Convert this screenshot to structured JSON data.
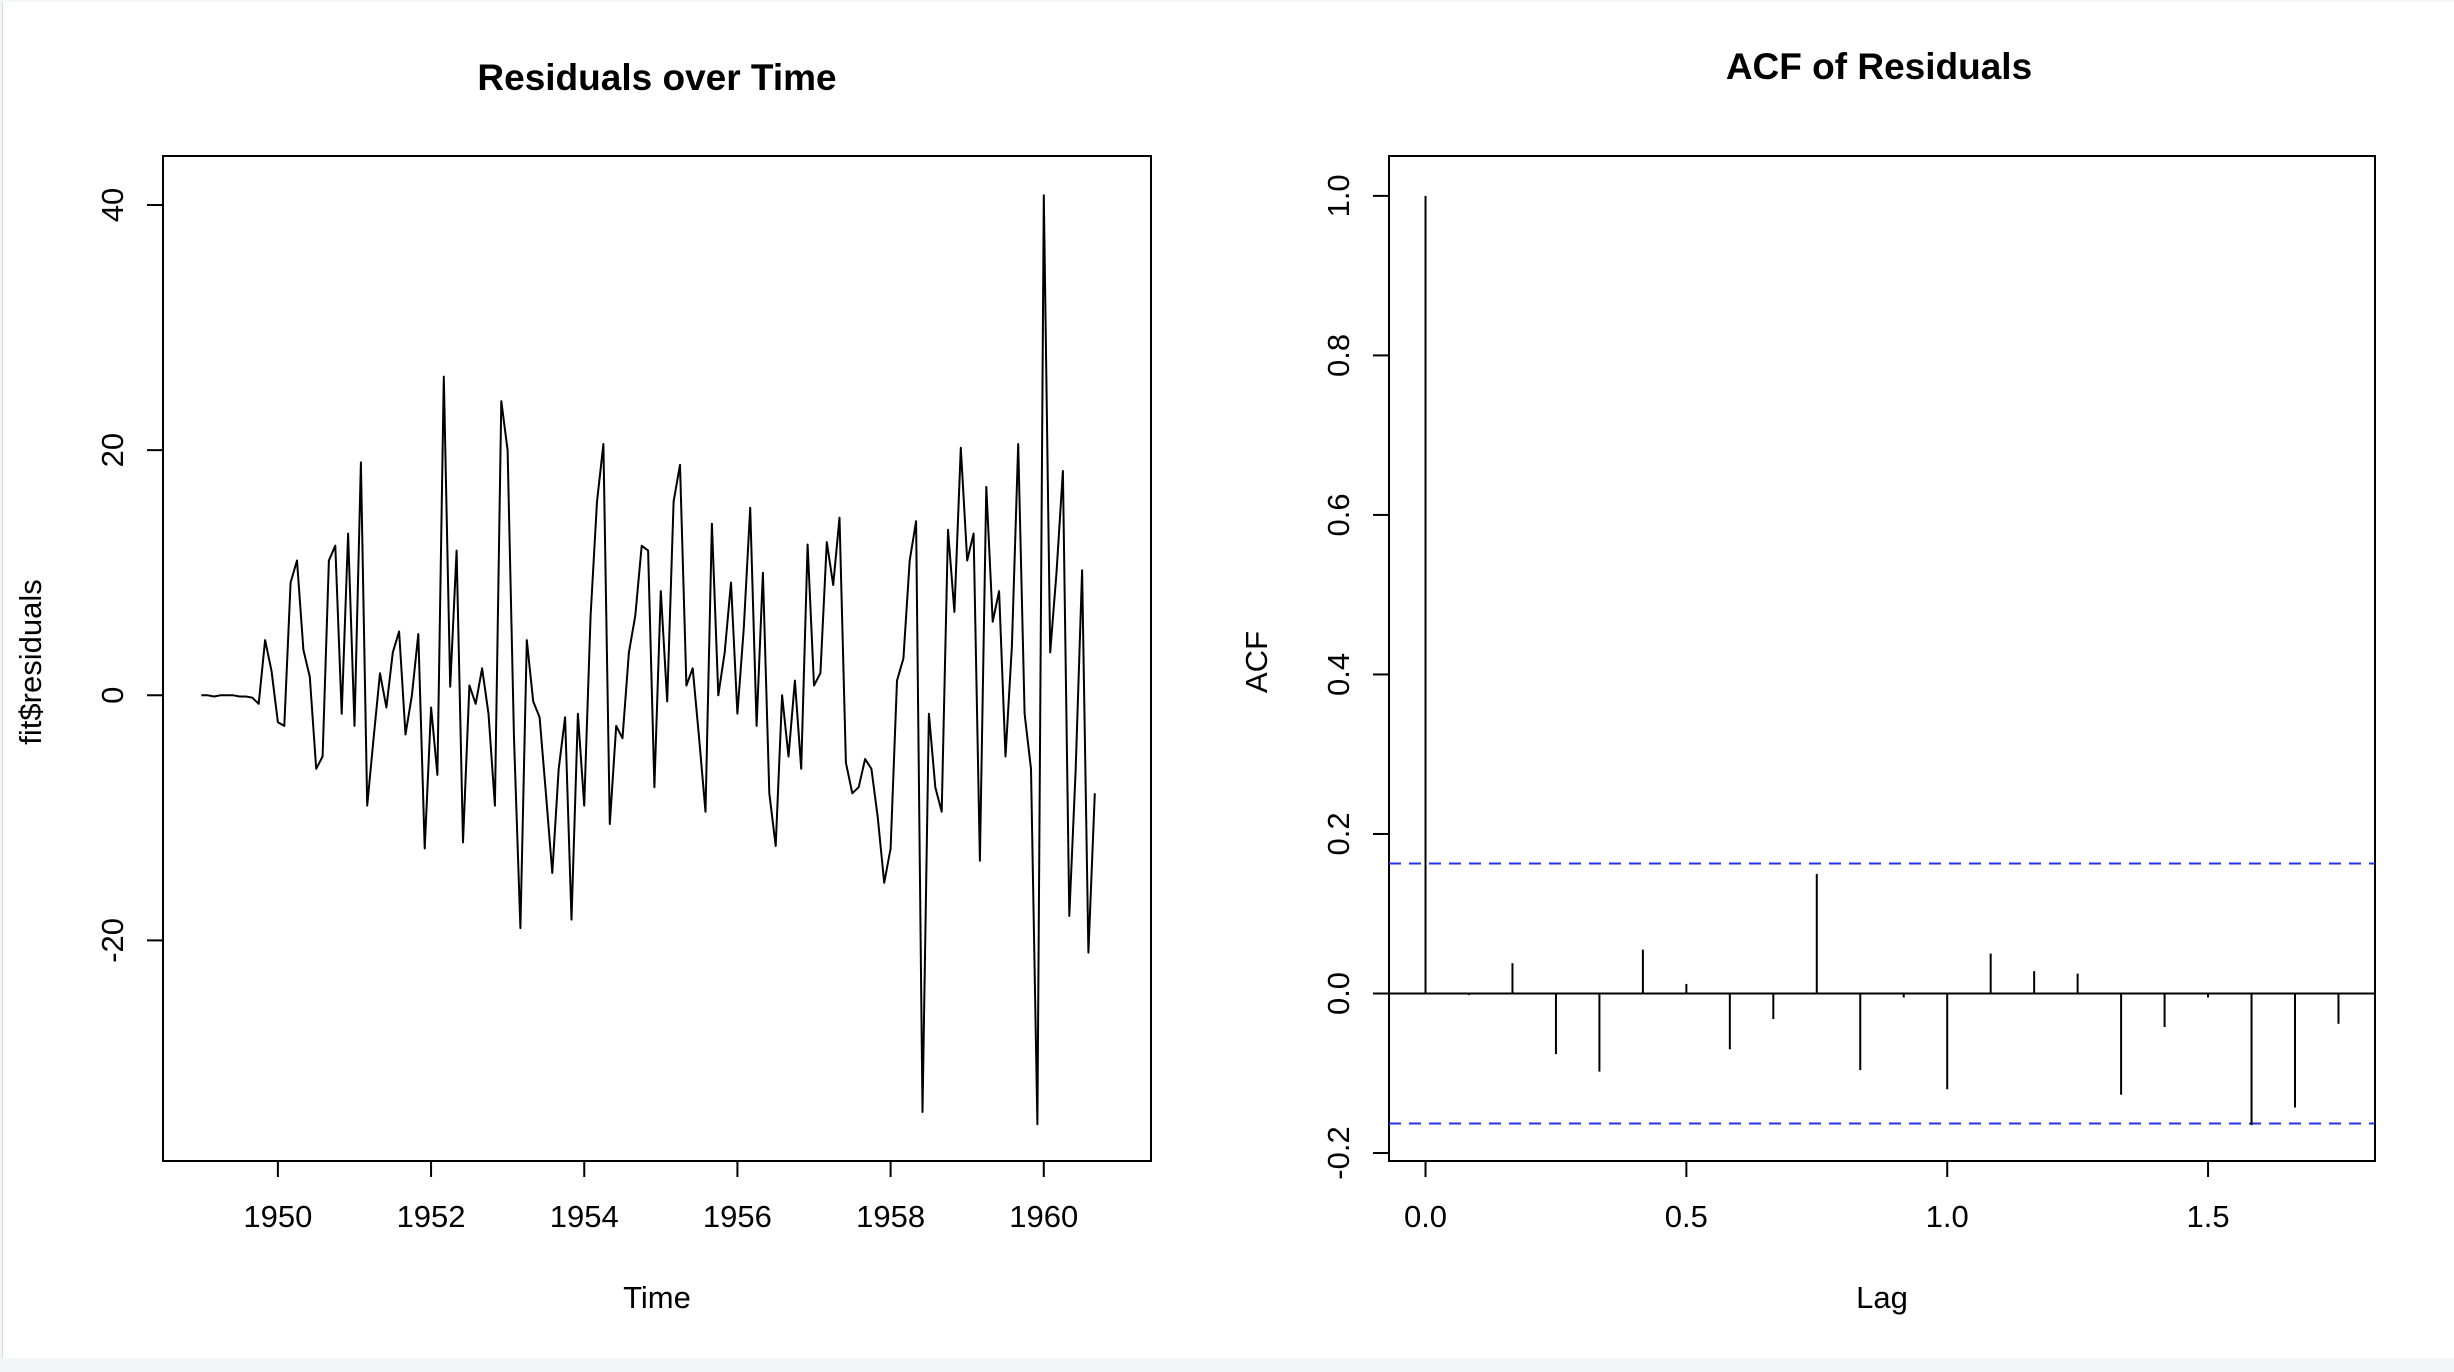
{
  "chart_data": [
    {
      "type": "line",
      "title": "Residuals over Time",
      "xlabel": "Time",
      "ylabel": "fit$residuals",
      "xlim": [
        1948.5,
        1961.4
      ],
      "ylim": [
        -38,
        44
      ],
      "xticks": [
        1950,
        1952,
        1954,
        1956,
        1958,
        1960
      ],
      "yticks": [
        -20,
        0,
        20,
        40
      ],
      "xtick_labels": [
        "1950",
        "1952",
        "1954",
        "1956",
        "1958",
        "1960"
      ],
      "ytick_labels": [
        "-20",
        "0",
        "20",
        "40"
      ],
      "color": "#000000",
      "series": [
        {
          "x_start": 1949.0,
          "x_step": 0.083333,
          "values": [
            0.0,
            0.0,
            -0.1,
            0.0,
            0.0,
            0.0,
            -0.1,
            -0.1,
            -0.2,
            -0.7,
            4.5,
            2.0,
            -2.2,
            -2.5,
            9.2,
            11.0,
            3.7,
            1.5,
            -6.0,
            -5.0,
            11.0,
            12.2,
            -1.5,
            13.2,
            -2.5,
            19.0,
            -9.0,
            -3.5,
            1.8,
            -1.0,
            3.5,
            5.2,
            -3.2,
            0.0,
            5.0,
            -12.5,
            -1.0,
            -6.5,
            26.0,
            0.7,
            11.8,
            -12.0,
            0.8,
            -0.7,
            2.2,
            -1.5,
            -9.0,
            24.0,
            20.0,
            -3.5,
            -19.0,
            4.5,
            -0.5,
            -1.8,
            -8.0,
            -14.5,
            -6.0,
            -1.8,
            -18.3,
            -1.5,
            -9.0,
            6.5,
            15.8,
            20.5,
            -10.5,
            -2.5,
            -3.5,
            3.5,
            6.5,
            12.2,
            11.8,
            -7.5,
            8.5,
            -0.5,
            15.8,
            18.8,
            0.8,
            2.2,
            -3.5,
            -9.5,
            14.0,
            0.0,
            3.5,
            9.2,
            -1.5,
            5.5,
            15.3,
            -2.5,
            10.0,
            -8.0,
            -12.3,
            0.0,
            -5.0,
            1.2,
            -6.0,
            12.3,
            0.8,
            1.8,
            12.5,
            9.0,
            14.5,
            -5.5,
            -8.0,
            -7.5,
            -5.2,
            -6.0,
            -10.0,
            -15.3,
            -12.5,
            1.2,
            3.0,
            11.0,
            14.2,
            -34.0,
            -1.5,
            -7.5,
            -9.5,
            13.5,
            6.8,
            20.2,
            11.0,
            13.2,
            -13.5,
            17.0,
            6.0,
            8.5,
            -5.0,
            4.0,
            20.5,
            -1.5,
            -6.0,
            -35.0,
            40.8,
            3.5,
            10.0,
            18.3,
            -18.0,
            -6.0,
            10.2,
            -21.0,
            -8.0
          ]
        }
      ]
    },
    {
      "type": "bar",
      "title": "ACF of Residuals",
      "xlabel": "Lag",
      "ylabel": "ACF",
      "xlim": [
        -0.07,
        1.82
      ],
      "ylim": [
        -0.21,
        1.05
      ],
      "xticks": [
        0.0,
        0.5,
        1.0,
        1.5
      ],
      "yticks": [
        -0.2,
        0.0,
        0.2,
        0.4,
        0.6,
        0.8,
        1.0
      ],
      "xtick_labels": [
        "0.0",
        "0.5",
        "1.0",
        "1.5"
      ],
      "ytick_labels": [
        "-0.2",
        "0.0",
        "0.2",
        "0.4",
        "0.6",
        "0.8",
        "1.0"
      ],
      "confidence_bounds": [
        0.163,
        -0.163
      ],
      "bound_color": "#2233ee",
      "color": "#000000",
      "lag_step": 0.083333,
      "values": [
        1.0,
        -0.002,
        0.038,
        -0.076,
        -0.098,
        0.055,
        0.012,
        -0.07,
        -0.032,
        0.15,
        -0.096,
        -0.005,
        -0.12,
        0.05,
        0.028,
        0.025,
        -0.127,
        -0.042,
        -0.005,
        -0.165,
        -0.143,
        -0.038
      ]
    }
  ]
}
